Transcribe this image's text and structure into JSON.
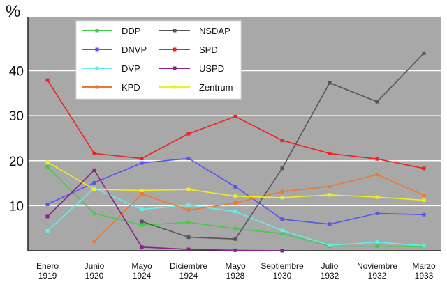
{
  "chart_data": {
    "type": "line",
    "ylabel": "%",
    "xlabel": "",
    "title": "",
    "ylim": [
      0,
      52
    ],
    "yticks": [
      10,
      20,
      30,
      40
    ],
    "grid": "horizontal",
    "legend_placement": "top-left",
    "categories": [
      [
        "Enero",
        "1919"
      ],
      [
        "Junio",
        "1920"
      ],
      [
        "Mayo",
        "1924"
      ],
      [
        "Diciembre",
        "1924"
      ],
      [
        "Mayo",
        "1928"
      ],
      [
        "Septiembre",
        "1930"
      ],
      [
        "Julio",
        "1932"
      ],
      [
        "Noviembre",
        "1932"
      ],
      [
        "Marzo",
        "1933"
      ]
    ],
    "series": [
      {
        "name": "DDP",
        "color": "#44cc44",
        "values": [
          18.6,
          8.3,
          5.7,
          6.3,
          4.9,
          3.8,
          1.0,
          1.0,
          0.9
        ]
      },
      {
        "name": "DNVP",
        "color": "#5555ee",
        "values": [
          10.3,
          15.1,
          19.5,
          20.5,
          14.2,
          7.0,
          5.9,
          8.3,
          8.0
        ]
      },
      {
        "name": "DVP",
        "color": "#66eeee",
        "values": [
          4.4,
          13.9,
          9.2,
          10.1,
          8.7,
          4.5,
          1.2,
          1.9,
          1.1
        ]
      },
      {
        "name": "KPD",
        "color": "#ee7733",
        "values": [
          null,
          2.1,
          12.6,
          9.0,
          10.6,
          13.1,
          14.3,
          16.9,
          12.3
        ]
      },
      {
        "name": "NSDAP",
        "color": "#555555",
        "values": [
          null,
          null,
          6.5,
          3.0,
          2.6,
          18.3,
          37.3,
          33.1,
          43.9
        ]
      },
      {
        "name": "SPD",
        "color": "#ee2222",
        "values": [
          37.9,
          21.6,
          20.5,
          26.0,
          29.8,
          24.5,
          21.6,
          20.4,
          18.3
        ]
      },
      {
        "name": "USPD",
        "color": "#882288",
        "values": [
          7.6,
          17.9,
          0.8,
          0.3,
          0.1,
          0.0,
          null,
          null,
          null
        ]
      },
      {
        "name": "Zentrum",
        "color": "#eeee22",
        "values": [
          19.7,
          13.6,
          13.4,
          13.6,
          12.1,
          11.8,
          12.4,
          11.9,
          11.2
        ]
      }
    ]
  }
}
